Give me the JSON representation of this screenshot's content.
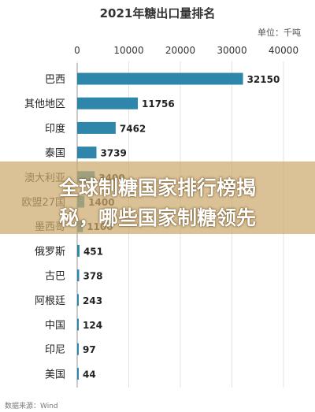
{
  "chart_data": {
    "type": "bar",
    "orientation": "horizontal",
    "title": "2021年糖出口量排名",
    "unit": "单位：千吨",
    "xlim": [
      0,
      40000
    ],
    "ticks": [
      0,
      10000,
      20000,
      30000,
      40000
    ],
    "grid": true,
    "categories": [
      "巴西",
      "其他地区",
      "印度",
      "泰国",
      "澳大利亚",
      "欧盟27国",
      "墨西哥",
      "俄罗斯",
      "古巴",
      "阿根廷",
      "中国",
      "印尼",
      "美国"
    ],
    "values": [
      32150,
      11756,
      7462,
      3739,
      3400,
      1400,
      1100,
      451,
      378,
      243,
      124,
      97,
      44
    ],
    "bar_color": "#2e86ab"
  },
  "source": "数据来源：Wind",
  "overlay": {
    "line1": "全球制糖国家排行榜揭",
    "line2": "秘，哪些国家制糖领先"
  }
}
